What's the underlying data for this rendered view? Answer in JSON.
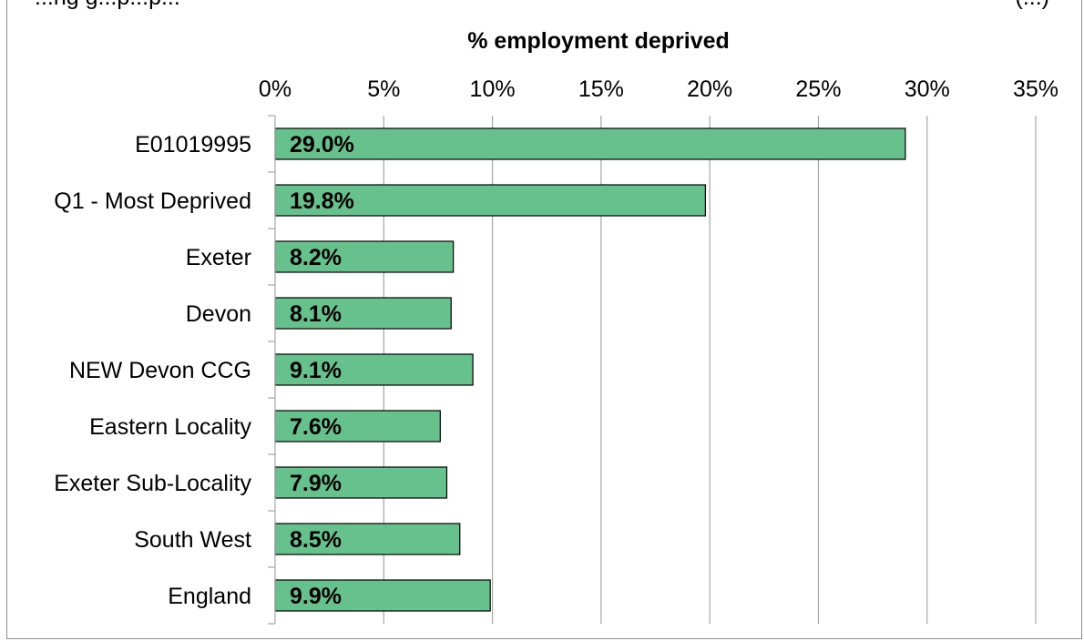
{
  "cut_text_left": "...ng g...p...p...",
  "cut_text_right": "(...)",
  "chart_data": {
    "type": "bar",
    "orientation": "horizontal",
    "title": "% employment deprived",
    "categories": [
      "E01019995",
      "Q1 - Most Deprived",
      "Exeter",
      "Devon",
      "NEW Devon CCG",
      "Eastern Locality",
      "Exeter Sub-Locality",
      "South West",
      "England"
    ],
    "values": [
      29.0,
      19.8,
      8.2,
      8.1,
      9.1,
      7.6,
      7.9,
      8.5,
      9.9
    ],
    "data_labels": [
      "29.0%",
      "19.8%",
      "8.2%",
      "8.1%",
      "9.1%",
      "7.6%",
      "7.9%",
      "8.5%",
      "9.9%"
    ],
    "xlim": [
      0,
      35
    ],
    "x_ticks": [
      "0%",
      "5%",
      "10%",
      "15%",
      "20%",
      "25%",
      "30%",
      "35%"
    ],
    "x_axis_position": "top",
    "grid": true,
    "colors": {
      "bar": "#66c18c",
      "bar_edge": "#000000",
      "grid": "#a6a6a6",
      "frame": "#8c8c8c"
    }
  }
}
